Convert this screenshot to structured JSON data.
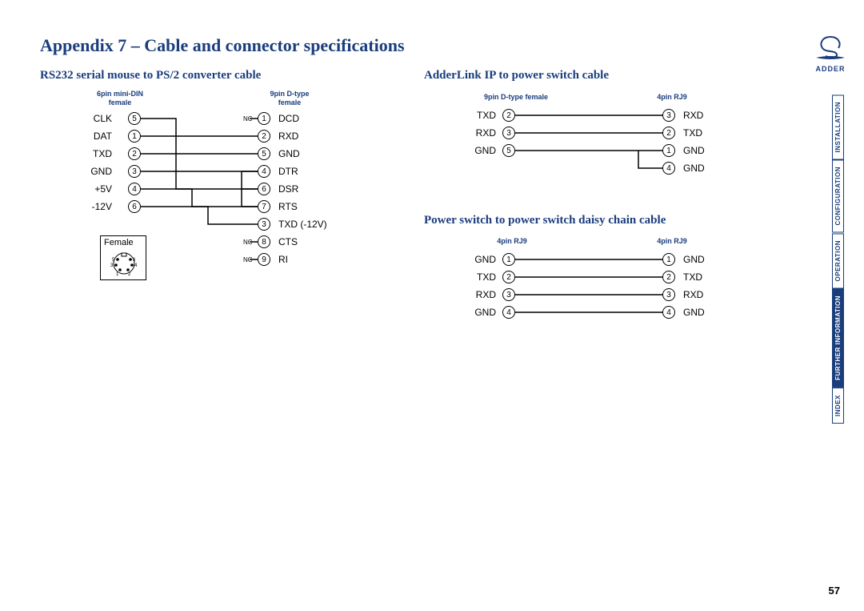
{
  "title": "Appendix 7 – Cable and connector specifications",
  "page_number": "57",
  "brand": "ADDER",
  "colors": {
    "heading": "#1a3d7c",
    "text": "#000000",
    "bg": "#ffffff"
  },
  "sidebar": {
    "items": [
      "INSTALLATION",
      "CONFIGURATION",
      "OPERATION",
      "FURTHER INFORMATION",
      "INDEX"
    ],
    "active_index": 3
  },
  "sections": [
    {
      "title": "RS232 serial mouse to PS/2 converter cable",
      "left_header": "6pin mini-DIN\nfemale",
      "right_header": "9pin D-type\nfemale",
      "female_caption": "Female",
      "left_pins": [
        {
          "label": "CLK",
          "num": "5"
        },
        {
          "label": "DAT",
          "num": "1"
        },
        {
          "label": "TXD",
          "num": "2"
        },
        {
          "label": "GND",
          "num": "3"
        },
        {
          "label": "+5V",
          "num": "4"
        },
        {
          "label": "-12V",
          "num": "6"
        }
      ],
      "right_pins": [
        {
          "num": "1",
          "label": "DCD",
          "nc": true
        },
        {
          "num": "2",
          "label": "RXD"
        },
        {
          "num": "5",
          "label": "GND"
        },
        {
          "num": "4",
          "label": "DTR"
        },
        {
          "num": "6",
          "label": "DSR"
        },
        {
          "num": "7",
          "label": "RTS"
        },
        {
          "num": "3",
          "label": "TXD (-12V)"
        },
        {
          "num": "8",
          "label": "CTS",
          "nc": true
        },
        {
          "num": "9",
          "label": "RI",
          "nc": true
        }
      ],
      "din_pins": [
        "5",
        "6",
        "3",
        "4",
        "1",
        "2"
      ]
    },
    {
      "title": "AdderLink IP to power switch cable",
      "left_header": "9pin D-type female",
      "right_header": "4pin RJ9",
      "left_pins": [
        {
          "label": "TXD",
          "num": "2"
        },
        {
          "label": "RXD",
          "num": "3"
        },
        {
          "label": "GND",
          "num": "5"
        }
      ],
      "right_pins": [
        {
          "num": "3",
          "label": "RXD"
        },
        {
          "num": "2",
          "label": "TXD"
        },
        {
          "num": "1",
          "label": "GND"
        },
        {
          "num": "4",
          "label": "GND"
        }
      ]
    },
    {
      "title": "Power switch to power switch daisy chain cable",
      "left_header": "4pin RJ9",
      "right_header": "4pin RJ9",
      "left_pins": [
        {
          "label": "GND",
          "num": "1"
        },
        {
          "label": "TXD",
          "num": "2"
        },
        {
          "label": "RXD",
          "num": "3"
        },
        {
          "label": "GND",
          "num": "4"
        }
      ],
      "right_pins": [
        {
          "num": "1",
          "label": "GND"
        },
        {
          "num": "2",
          "label": "TXD"
        },
        {
          "num": "3",
          "label": "RXD"
        },
        {
          "num": "4",
          "label": "GND"
        }
      ]
    }
  ]
}
